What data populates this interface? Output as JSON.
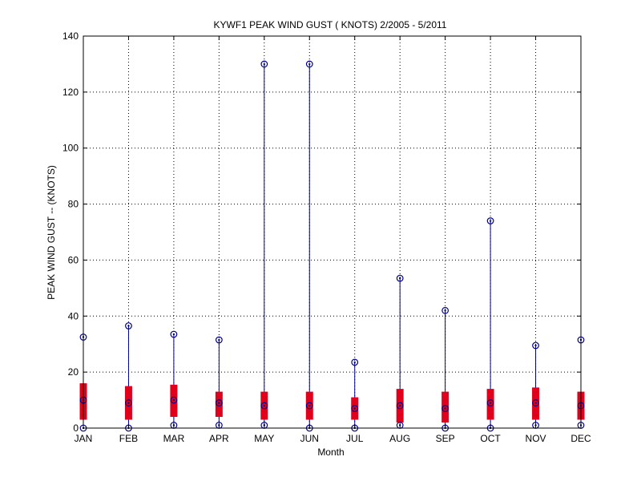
{
  "chart_data": {
    "type": "boxplot",
    "title": "KYWF1  PEAK WIND GUST ( KNOTS) 2/2005 - 5/2011",
    "xlabel": "Month",
    "ylabel": "PEAK WIND GUST -- (KNOTS)",
    "ylim": [
      0,
      140
    ],
    "yticks": [
      0,
      20,
      40,
      60,
      80,
      100,
      120,
      140
    ],
    "grid": true,
    "categories": [
      "JAN",
      "FEB",
      "MAR",
      "APR",
      "MAY",
      "JUN",
      "JUL",
      "AUG",
      "SEP",
      "OCT",
      "NOV",
      "DEC"
    ],
    "series": [
      {
        "min": [
          0,
          0,
          1,
          1,
          1,
          0,
          0,
          1,
          0,
          0,
          1,
          1
        ],
        "q1": [
          3,
          3,
          4,
          4,
          3,
          3,
          3,
          2,
          2,
          3,
          3,
          3
        ],
        "median": [
          10,
          9,
          10,
          9,
          8,
          8,
          7,
          8,
          7,
          9,
          9,
          8
        ],
        "q3": [
          16,
          15,
          15.5,
          13,
          13,
          13,
          11,
          14,
          13,
          14,
          14.5,
          13
        ],
        "max": [
          32.5,
          36.5,
          33.5,
          31.5,
          130,
          130,
          23.5,
          53.5,
          42,
          74,
          29.5,
          31.5
        ]
      }
    ],
    "colors": {
      "whisker": "#00008b",
      "box": "#e0001b",
      "marker": "#00008b",
      "grid": "#000000"
    }
  }
}
